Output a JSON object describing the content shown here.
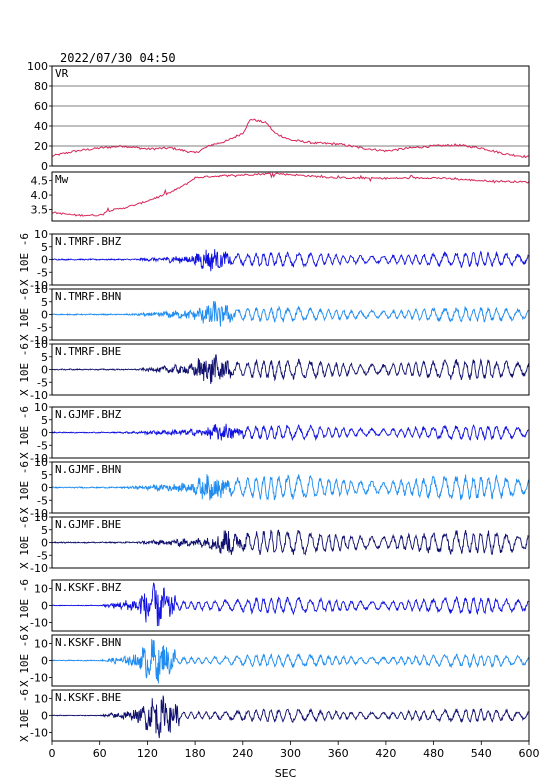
{
  "header": {
    "timestamp": "2022/07/30 04:50"
  },
  "x_axis": {
    "label": "SEC",
    "ticks": [
      "0",
      "60",
      "120",
      "180",
      "240",
      "300",
      "360",
      "420",
      "480",
      "540",
      "600"
    ]
  },
  "colors": {
    "vr": "#d6285a",
    "bhz": "#1010e0",
    "bhn": "#1e8cf0",
    "bhe": "#10106e"
  },
  "chart_data": [
    {
      "type": "line",
      "label": "VR",
      "ylim": [
        0,
        100
      ],
      "yticks": [
        "0",
        "20",
        "40",
        "60",
        "80",
        "100"
      ],
      "grid": true,
      "x": [
        0,
        30,
        60,
        90,
        120,
        150,
        180,
        200,
        220,
        240,
        250,
        260,
        270,
        280,
        300,
        330,
        360,
        390,
        420,
        450,
        480,
        510,
        540,
        570,
        600
      ],
      "y": [
        10,
        15,
        18,
        20,
        17,
        18,
        13,
        21,
        25,
        33,
        47,
        45,
        43,
        33,
        26,
        23,
        22,
        18,
        15,
        18,
        20,
        21,
        18,
        12,
        9
      ]
    },
    {
      "type": "line",
      "label": "Mw",
      "ylim": [
        3.1,
        4.8
      ],
      "yticks": [
        "3.5",
        "4.0",
        "4.5"
      ],
      "grid": false,
      "x": [
        0,
        30,
        60,
        70,
        90,
        110,
        130,
        150,
        170,
        180,
        200,
        240,
        280,
        330,
        360,
        420,
        480,
        540,
        600
      ],
      "y": [
        3.4,
        3.3,
        3.3,
        3.45,
        3.55,
        3.7,
        3.9,
        4.1,
        4.4,
        4.6,
        4.65,
        4.7,
        4.75,
        4.65,
        4.6,
        4.58,
        4.6,
        4.5,
        4.45
      ]
    },
    {
      "type": "line",
      "label": "N.TMRF.BHZ",
      "component": "bhz",
      "yunit": "X 10E -6",
      "yticks": [
        "-10",
        "-5",
        "0",
        "5",
        "10"
      ],
      "ylim": [
        -10,
        10
      ],
      "onset": 100,
      "burst_center": 200,
      "peak_amplitude": 5,
      "coda_amplitude": 3
    },
    {
      "type": "line",
      "label": "N.TMRF.BHN",
      "component": "bhn",
      "yunit": "X 10E -6",
      "yticks": [
        "-10",
        "-5",
        "0",
        "5",
        "10"
      ],
      "ylim": [
        -10,
        10
      ],
      "onset": 95,
      "burst_center": 205,
      "peak_amplitude": 6,
      "coda_amplitude": 3
    },
    {
      "type": "line",
      "label": "N.TMRF.BHE",
      "component": "bhe",
      "yunit": "X 10E -6",
      "yticks": [
        "-10",
        "-5",
        "0",
        "5",
        "10"
      ],
      "ylim": [
        -10,
        10
      ],
      "onset": 105,
      "burst_center": 200,
      "peak_amplitude": 7,
      "coda_amplitude": 4
    },
    {
      "type": "line",
      "label": "N.GJMF.BHZ",
      "component": "bhz",
      "yunit": "X 10E -6",
      "yticks": [
        "-10",
        "-5",
        "0",
        "5",
        "10"
      ],
      "ylim": [
        -10,
        10
      ],
      "onset": 85,
      "burst_center": 215,
      "peak_amplitude": 4,
      "coda_amplitude": 3
    },
    {
      "type": "line",
      "label": "N.GJMF.BHN",
      "component": "bhn",
      "yunit": "X 10E -6",
      "yticks": [
        "-10",
        "-5",
        "0",
        "5",
        "10"
      ],
      "ylim": [
        -10,
        10
      ],
      "onset": 85,
      "burst_center": 200,
      "peak_amplitude": 6,
      "coda_amplitude": 5
    },
    {
      "type": "line",
      "label": "N.GJMF.BHE",
      "component": "bhe",
      "yunit": "X 10E -6",
      "yticks": [
        "-10",
        "-5",
        "0",
        "5",
        "10"
      ],
      "ylim": [
        -10,
        10
      ],
      "onset": 90,
      "burst_center": 220,
      "peak_amplitude": 6,
      "coda_amplitude": 5
    },
    {
      "type": "line",
      "label": "N.KSKF.BHZ",
      "component": "bhz",
      "yunit": "X 10E -6",
      "yticks": [
        "-10",
        "0",
        "10"
      ],
      "ylim": [
        -15,
        15
      ],
      "onset": 60,
      "burst_center": 130,
      "peak_amplitude": 14,
      "coda_amplitude": 5
    },
    {
      "type": "line",
      "label": "N.KSKF.BHN",
      "component": "bhn",
      "yunit": "X 10E -6",
      "yticks": [
        "-10",
        "0",
        "10"
      ],
      "ylim": [
        -15,
        15
      ],
      "onset": 60,
      "burst_center": 130,
      "peak_amplitude": 14,
      "coda_amplitude": 4
    },
    {
      "type": "line",
      "label": "N.KSKF.BHE",
      "component": "bhe",
      "yunit": "X 10E -6",
      "yticks": [
        "-10",
        "0",
        "10"
      ],
      "ylim": [
        -15,
        15
      ],
      "onset": 60,
      "burst_center": 135,
      "peak_amplitude": 14,
      "coda_amplitude": 4
    }
  ]
}
